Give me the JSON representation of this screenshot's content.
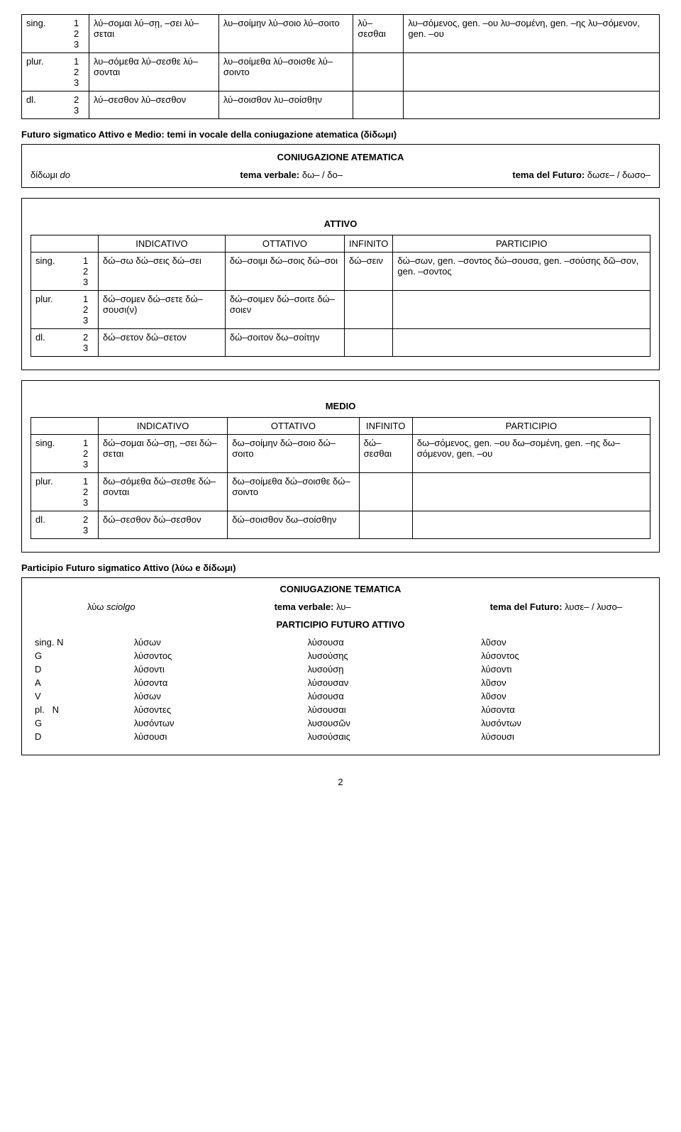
{
  "table1": {
    "rows": [
      {
        "label": "sing.",
        "nums": "1\n2\n3",
        "c1": "λύ–σομαι λύ–σῃ, –σει λύ–σεται",
        "c2": "λυ–σοίμην λύ–σοιο λύ–σοιτο",
        "c3": "λύ–σεσθαι",
        "c4": "λυ–σόμενος, gen. –ου λυ–σομένη, gen. –ης λυ–σόμενον, gen. –ου"
      },
      {
        "label": "plur.",
        "nums": "1\n2\n3",
        "c1": "λυ–σόμεθα λύ–σεσθε λύ–σονται",
        "c2": "λυ–σοίμεθα λύ–σοισθε λύ–σοιντο",
        "c3": "",
        "c4": ""
      },
      {
        "label": "dl.",
        "nums": "2\n3",
        "c1": "λύ–σεσθον λύ–σεσθον",
        "c2": "λύ–σοισθον λυ–σοίσθην",
        "c3": "",
        "c4": ""
      }
    ]
  },
  "futuro_heading": "Futuro sigmatico Attivo e Medio: temi in vocale della coniugazione atematica (δίδωμι)",
  "coniugazione_atematica": {
    "title": "CONIUGAZIONE ATEMATICA",
    "verb": "δίδωμι",
    "verb_gloss": "do",
    "tema_label": "tema verbale:",
    "tema_val": "δω– / δο–",
    "futuro_label": "tema del Futuro:",
    "futuro_val": "δωσε– / δωσο–"
  },
  "attivo": {
    "title": "ATTIVO",
    "headers": [
      "INDICATIVO",
      "OTTATIVO",
      "INFINITO",
      "PARTICIPIO"
    ],
    "rows": [
      {
        "label": "sing.",
        "nums": "1\n2\n3",
        "c1": "δώ–σω δώ–σεις δώ–σει",
        "c2": "δώ–σοιμι δώ–σοις δώ–σοι",
        "c3": "δώ–σειν",
        "c4": "δώ–σων, gen. –σοντος δώ–σουσα, gen. –σούσης δῶ–σον, gen. –σοντος"
      },
      {
        "label": "plur.",
        "nums": "1\n2\n3",
        "c1": "δώ–σομεν δώ–σετε δώ–σουσι(ν)",
        "c2": "δώ–σοιμεν δώ–σοιτε δώ–σοιεν",
        "c3": "",
        "c4": ""
      },
      {
        "label": "dl.",
        "nums": "2\n3",
        "c1": "δώ–σετον δώ–σετον",
        "c2": "δώ–σοιτον δω–σοίτην",
        "c3": "",
        "c4": ""
      }
    ]
  },
  "medio": {
    "title": "MEDIO",
    "headers": [
      "INDICATIVO",
      "OTTATIVO",
      "INFINITO",
      "PARTICIPIO"
    ],
    "rows": [
      {
        "label": "sing.",
        "nums": "1\n2\n3",
        "c1": "δώ–σομαι δώ–σῃ, –σει δώ–σεται",
        "c2": "δω–σοίμην δώ–σοιο δώ–σοιτο",
        "c3": "δώ–σεσθαι",
        "c4": "δω–σόμενος, gen. –ου δω–σομένη, gen. –ης δω–σόμενον, gen. –ου"
      },
      {
        "label": "plur.",
        "nums": "1\n2\n3",
        "c1": "δω–σόμεθα δώ–σεσθε δώ–σονται",
        "c2": "δω–σοίμεθα δώ–σοισθε δώ–σοιντο",
        "c3": "",
        "c4": ""
      },
      {
        "label": "dl.",
        "nums": "2\n3",
        "c1": "δώ–σεσθον δώ–σεσθον",
        "c2": "δώ–σοισθον δω–σοίσθην",
        "c3": "",
        "c4": ""
      }
    ]
  },
  "participio_heading": "Participio Futuro sigmatico Attivo (λύω e δίδωμι)",
  "coniugazione_tematica": {
    "title": "CONIUGAZIONE TEMATICA",
    "verb": "λύω",
    "verb_gloss": "sciolgo",
    "tema_label": "tema verbale:",
    "tema_val": "λυ–",
    "futuro_label": "tema del Futuro:",
    "futuro_val": "λυσε– / λυσο–"
  },
  "participio_futuro": {
    "title": "PARTICIPIO FUTURO ATTIVO",
    "rows": [
      {
        "label": "sing. N",
        "m": "λύσων",
        "f": "λύσουσα",
        "n": "λῦσον"
      },
      {
        "label": "G",
        "m": "λύσοντος",
        "f": "λυσούσης",
        "n": "λύσοντος"
      },
      {
        "label": "D",
        "m": "λύσοντι",
        "f": "λυσούσῃ",
        "n": "λύσοντι"
      },
      {
        "label": "A",
        "m": "λύσοντα",
        "f": "λύσουσαν",
        "n": "λῦσον"
      },
      {
        "label": "V",
        "m": "λύσων",
        "f": "λύσουσα",
        "n": "λῦσον"
      },
      {
        "label": "pl.   N",
        "m": "λύσοντες",
        "f": "λύσουσαι",
        "n": "λύσοντα"
      },
      {
        "label": "G",
        "m": "λυσόντων",
        "f": "λυσουσῶν",
        "n": "λυσόντων"
      },
      {
        "label": "D",
        "m": "λύσουσι",
        "f": "λυσούσαις",
        "n": "λύσουσι"
      }
    ]
  },
  "page_number": "2"
}
